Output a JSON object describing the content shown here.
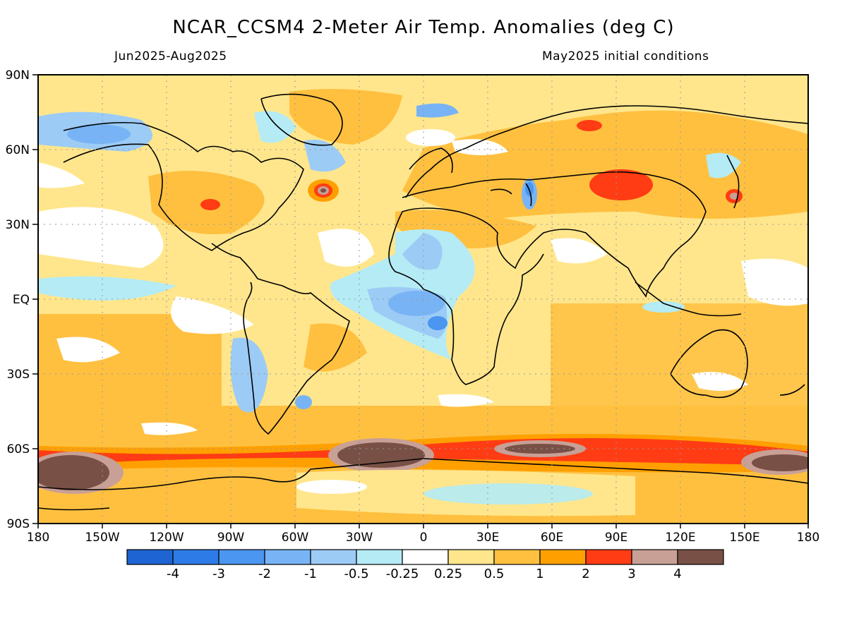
{
  "title": "NCAR_CCSM4 2-Meter Air Temp. Anomalies (deg C)",
  "subtitle_left": "Jun2025-Aug2025",
  "subtitle_right": "May2025 initial conditions",
  "lat_labels": [
    "90N",
    "60N",
    "30N",
    "EQ",
    "30S",
    "60S",
    "90S"
  ],
  "lon_labels": [
    "180",
    "150W",
    "120W",
    "90W",
    "60W",
    "30W",
    "0",
    "30E",
    "60E",
    "90E",
    "120E",
    "150E",
    "180"
  ],
  "colorbar": {
    "colors": [
      "#1e64d2",
      "#2d7be6",
      "#4a96f0",
      "#78b4f5",
      "#9ccbf5",
      "#b4ebf5",
      "#ffffff",
      "#ffe68c",
      "#ffc040",
      "#ffa000",
      "#ff3c14",
      "#c8a096",
      "#785046"
    ],
    "labels": [
      "-4",
      "-3",
      "-2",
      "-1",
      "-0.5",
      "-0.25",
      "0.25",
      "0.5",
      "1",
      "2",
      "3",
      "4"
    ]
  }
}
